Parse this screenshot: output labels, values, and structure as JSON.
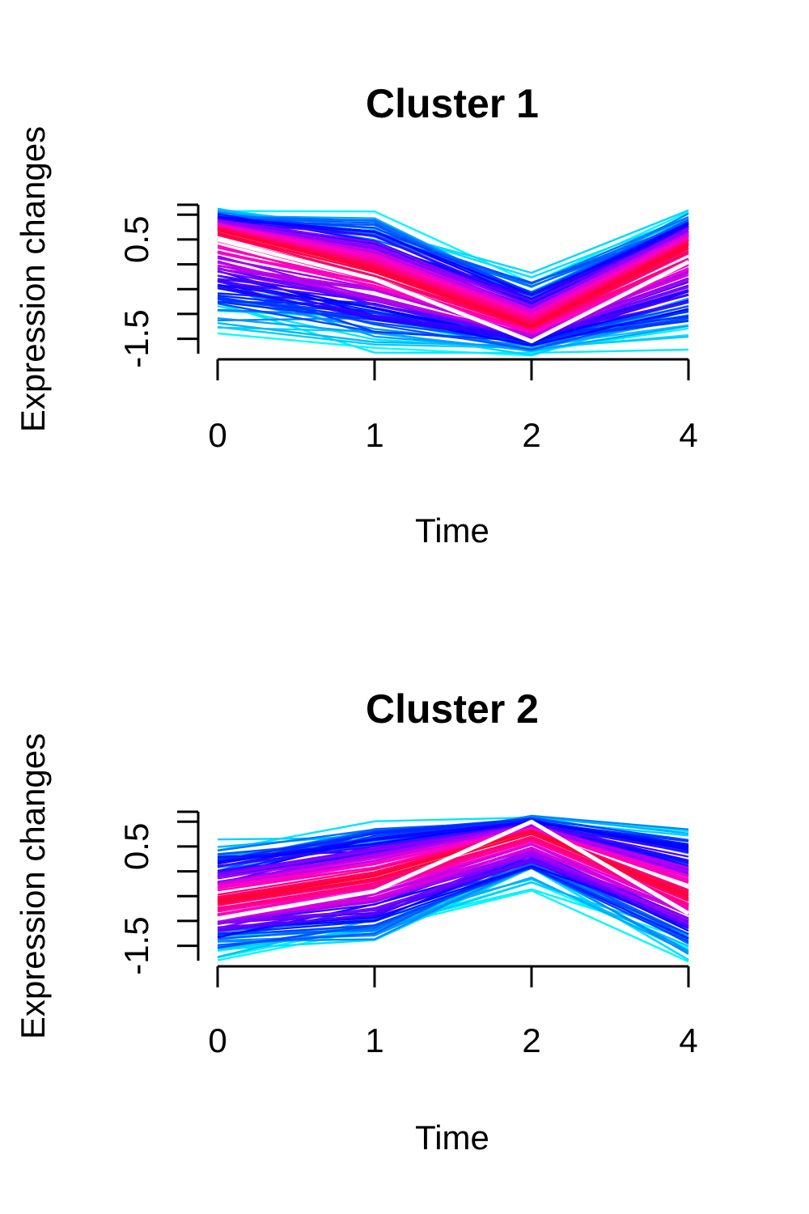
{
  "chart_data": [
    {
      "type": "line",
      "title": "Cluster 1",
      "xlabel": "Time",
      "ylabel": "Expression changes",
      "categories": [
        "0",
        "1",
        "2",
        "4"
      ],
      "yticks": [
        "-1.5",
        "0.5"
      ],
      "ylim": [
        -1.8,
        1.2
      ],
      "centroid": {
        "color": "#ffffff",
        "values": [
          0.5,
          -0.3,
          -1.55,
          0.05
        ]
      },
      "series_bundle": {
        "description_colors": [
          "#ff0033",
          "#ff00cc",
          "#8800ff",
          "#0000ff",
          "#0066ff",
          "#00ffff"
        ],
        "extremes": {
          "max": [
            1.15,
            1.15,
            -0.15,
            1.15
          ],
          "min": [
            -1.45,
            -1.85,
            -1.85,
            -1.85
          ]
        },
        "anchor": [
          0.7,
          -0.1,
          -1.25,
          0.4
        ],
        "count": 120
      }
    },
    {
      "type": "line",
      "title": "Cluster 2",
      "xlabel": "Time",
      "ylabel": "Expression changes",
      "categories": [
        "0",
        "1",
        "2",
        "4"
      ],
      "yticks": [
        "-1.5",
        "0.5"
      ],
      "ylim": [
        -1.8,
        1.2
      ],
      "centroid": {
        "color": "#ffffff",
        "values": [
          -0.95,
          -0.4,
          1.0,
          -0.85
        ]
      },
      "series_bundle": {
        "description_colors": [
          "#ff0033",
          "#ff00cc",
          "#8800ff",
          "#0000ff",
          "#0066ff",
          "#00ffff"
        ],
        "extremes": {
          "max": [
            0.7,
            1.15,
            1.15,
            1.1
          ],
          "min": [
            -1.85,
            -1.6,
            -0.4,
            -1.85
          ]
        },
        "anchor": [
          -0.6,
          -0.1,
          0.8,
          -0.5
        ],
        "count": 120
      }
    }
  ]
}
